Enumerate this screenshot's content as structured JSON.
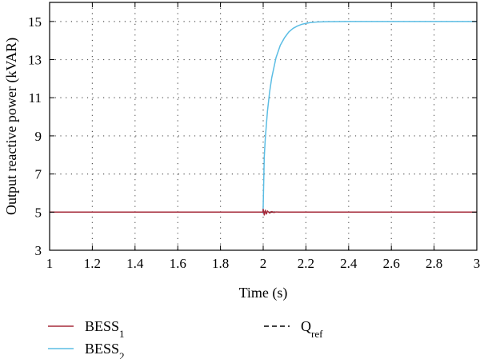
{
  "chart_data": {
    "type": "line",
    "title": "",
    "xlabel": "Time (s)",
    "ylabel": "Output reactive power (kVAR)",
    "xlim": [
      1,
      3
    ],
    "ylim": [
      3,
      16
    ],
    "xticks": [
      1,
      1.2,
      1.4,
      1.6,
      1.8,
      2,
      2.2,
      2.4,
      2.6,
      2.8,
      3
    ],
    "xtick_labels": [
      "1",
      "1.2",
      "1.4",
      "1.6",
      "1.8",
      "2",
      "2.2",
      "2.4",
      "2.6",
      "2.8",
      "3"
    ],
    "yticks": [
      3,
      5,
      7,
      9,
      11,
      13,
      15
    ],
    "ytick_labels": [
      "3",
      "5",
      "7",
      "9",
      "11",
      "13",
      "15"
    ],
    "grid": true,
    "grid_style": "dotted",
    "legend_position": "bottom",
    "series": [
      {
        "name": "BESS",
        "subscript": "1",
        "color": "#a52a3a",
        "dash": "solid",
        "x": [
          1.0,
          1.999,
          2.0,
          2.005,
          2.01,
          2.015,
          2.02,
          2.03,
          2.04,
          2.05,
          2.06,
          2.08,
          2.1,
          2.2,
          3.0
        ],
        "y": [
          5.0,
          5.0,
          5.15,
          4.85,
          5.1,
          4.9,
          5.06,
          4.95,
          5.03,
          4.98,
          5.01,
          5.0,
          5.0,
          5.0,
          5.0
        ]
      },
      {
        "name": "BESS",
        "subscript": "2",
        "color": "#5bbde4",
        "dash": "solid",
        "x": [
          1.0,
          1.998,
          1.999,
          2.0,
          2.005,
          2.01,
          2.02,
          2.03,
          2.04,
          2.06,
          2.08,
          2.1,
          2.12,
          2.14,
          2.16,
          2.18,
          2.2,
          2.22,
          2.25,
          2.3,
          2.4,
          3.0
        ],
        "y": [
          5.0,
          5.0,
          4.95,
          5.3,
          7.9,
          8.9,
          10.3,
          11.3,
          12.05,
          13.1,
          13.75,
          14.15,
          14.45,
          14.64,
          14.76,
          14.85,
          14.9,
          14.94,
          14.97,
          14.99,
          15.0,
          15.0
        ]
      },
      {
        "name": "Q",
        "subscript": "ref",
        "color": "#000000",
        "dash": "dashed",
        "x": [
          1.0,
          3.0
        ],
        "y": [
          5.0,
          5.0
        ]
      }
    ]
  }
}
